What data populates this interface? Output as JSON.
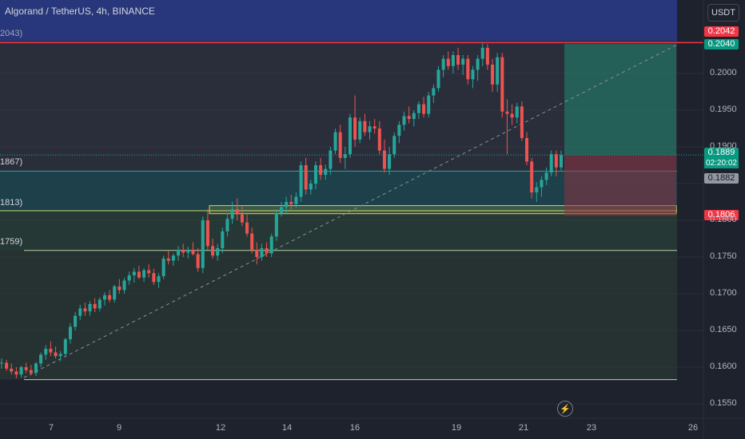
{
  "header": {
    "symbol_title": "Algorand / TetherUS, 4h, BINANCE",
    "currency_button": "USDT"
  },
  "level_labels": [
    "2043)",
    "1867)",
    "1813)",
    "1759)"
  ],
  "tags": {
    "red_top": "0.2042",
    "green_top": "0.2040",
    "last": "0.1889",
    "countdown": "02:20:02",
    "grey": "0.1882",
    "stop": "0.1806"
  },
  "icons": {
    "replay": "lightning-bolt-icon"
  },
  "chart_data": {
    "type": "candlestick",
    "title": "Algorand / TetherUS, 4h, BINANCE",
    "y_axis": {
      "ticks": [
        0.155,
        0.16,
        0.165,
        0.17,
        0.175,
        0.18,
        0.185,
        0.19,
        0.195,
        0.2
      ],
      "tick_labels": [
        "0.1550",
        "0.1600",
        "0.1650",
        "0.1700",
        "0.1750",
        "0.1800",
        "",
        "0.1900",
        "0.1950",
        "0.2000"
      ],
      "ylim": [
        0.1525,
        0.2095
      ]
    },
    "x_axis": {
      "tick_labels": [
        "7",
        "9",
        "12",
        "14",
        "16",
        "19",
        "21",
        "23",
        "26"
      ]
    },
    "colors": {
      "up": "#26a69a",
      "down": "#ef5350",
      "background": "#1e222d"
    },
    "horizontal_levels": {
      "red_line": 0.2042,
      "level_1": 0.1867,
      "level_2": 0.1813,
      "level_3": 0.1759,
      "base": 0.1583
    },
    "position": {
      "entry": 0.1889,
      "target": 0.204,
      "stop": 0.1806
    },
    "candles": [
      [
        0.1605,
        0.1612,
        0.1598,
        0.1606
      ],
      [
        0.1606,
        0.161,
        0.1595,
        0.1598
      ],
      [
        0.1598,
        0.1605,
        0.159,
        0.1594
      ],
      [
        0.1594,
        0.16,
        0.1585,
        0.159
      ],
      [
        0.159,
        0.1602,
        0.1586,
        0.16
      ],
      [
        0.16,
        0.1606,
        0.1592,
        0.1596
      ],
      [
        0.1596,
        0.1603,
        0.1589,
        0.1592
      ],
      [
        0.1592,
        0.1607,
        0.1588,
        0.1605
      ],
      [
        0.1605,
        0.162,
        0.16,
        0.1617
      ],
      [
        0.1617,
        0.163,
        0.161,
        0.1625
      ],
      [
        0.1625,
        0.1635,
        0.1615,
        0.162
      ],
      [
        0.162,
        0.1628,
        0.1612,
        0.1615
      ],
      [
        0.1615,
        0.1622,
        0.1608,
        0.1618
      ],
      [
        0.1618,
        0.164,
        0.1615,
        0.1638
      ],
      [
        0.1638,
        0.166,
        0.1632,
        0.1655
      ],
      [
        0.1655,
        0.1675,
        0.165,
        0.167
      ],
      [
        0.167,
        0.1685,
        0.1664,
        0.168
      ],
      [
        0.168,
        0.1688,
        0.167,
        0.1676
      ],
      [
        0.1676,
        0.169,
        0.167,
        0.1686
      ],
      [
        0.1686,
        0.1694,
        0.1675,
        0.168
      ],
      [
        0.168,
        0.1695,
        0.1676,
        0.1692
      ],
      [
        0.1692,
        0.1702,
        0.1684,
        0.1698
      ],
      [
        0.1698,
        0.1705,
        0.1688,
        0.1692
      ],
      [
        0.1692,
        0.1712,
        0.1688,
        0.171
      ],
      [
        0.171,
        0.172,
        0.17,
        0.1705
      ],
      [
        0.1705,
        0.1722,
        0.17,
        0.1718
      ],
      [
        0.1718,
        0.173,
        0.1712,
        0.1725
      ],
      [
        0.1725,
        0.1735,
        0.1715,
        0.173
      ],
      [
        0.173,
        0.1738,
        0.172,
        0.1722
      ],
      [
        0.1722,
        0.1735,
        0.1716,
        0.1732
      ],
      [
        0.1732,
        0.174,
        0.1722,
        0.1728
      ],
      [
        0.1728,
        0.1734,
        0.1712,
        0.1716
      ],
      [
        0.1716,
        0.1728,
        0.1708,
        0.1724
      ],
      [
        0.1724,
        0.1752,
        0.172,
        0.1748
      ],
      [
        0.1748,
        0.1758,
        0.174,
        0.1745
      ],
      [
        0.1745,
        0.1755,
        0.1738,
        0.1752
      ],
      [
        0.1752,
        0.1765,
        0.1745,
        0.176
      ],
      [
        0.176,
        0.1768,
        0.175,
        0.1756
      ],
      [
        0.1756,
        0.1764,
        0.1748,
        0.176
      ],
      [
        0.176,
        0.177,
        0.1752,
        0.1754
      ],
      [
        0.1754,
        0.1762,
        0.173,
        0.1735
      ],
      [
        0.1735,
        0.1805,
        0.1728,
        0.18
      ],
      [
        0.18,
        0.1815,
        0.176,
        0.1765
      ],
      [
        0.1765,
        0.1775,
        0.1748,
        0.1752
      ],
      [
        0.1752,
        0.1768,
        0.1745,
        0.1762
      ],
      [
        0.1762,
        0.179,
        0.1755,
        0.1785
      ],
      [
        0.1785,
        0.181,
        0.1778,
        0.1802
      ],
      [
        0.1802,
        0.1825,
        0.1795,
        0.1815
      ],
      [
        0.1815,
        0.183,
        0.18,
        0.1808
      ],
      [
        0.1808,
        0.182,
        0.1792,
        0.1797
      ],
      [
        0.1797,
        0.1808,
        0.1778,
        0.1782
      ],
      [
        0.1782,
        0.179,
        0.1755,
        0.176
      ],
      [
        0.176,
        0.177,
        0.174,
        0.175
      ],
      [
        0.175,
        0.1768,
        0.1745,
        0.1762
      ],
      [
        0.1762,
        0.177,
        0.175,
        0.1755
      ],
      [
        0.1755,
        0.1782,
        0.175,
        0.1778
      ],
      [
        0.1778,
        0.1815,
        0.1772,
        0.181
      ],
      [
        0.181,
        0.1825,
        0.1805,
        0.1818
      ],
      [
        0.1818,
        0.1832,
        0.1808,
        0.1825
      ],
      [
        0.1825,
        0.1835,
        0.1815,
        0.1822
      ],
      [
        0.1822,
        0.1838,
        0.1817,
        0.1832
      ],
      [
        0.1832,
        0.188,
        0.1825,
        0.1875
      ],
      [
        0.1875,
        0.1885,
        0.1835,
        0.1842
      ],
      [
        0.1842,
        0.1855,
        0.1835,
        0.185
      ],
      [
        0.185,
        0.188,
        0.1842,
        0.1875
      ],
      [
        0.1875,
        0.1885,
        0.1855,
        0.1862
      ],
      [
        0.1862,
        0.1876,
        0.1855,
        0.187
      ],
      [
        0.187,
        0.19,
        0.1862,
        0.1895
      ],
      [
        0.1895,
        0.1925,
        0.189,
        0.192
      ],
      [
        0.192,
        0.193,
        0.1878,
        0.1885
      ],
      [
        0.1885,
        0.19,
        0.187,
        0.189
      ],
      [
        0.189,
        0.1945,
        0.1885,
        0.194
      ],
      [
        0.194,
        0.197,
        0.19,
        0.191
      ],
      [
        0.191,
        0.194,
        0.1905,
        0.1935
      ],
      [
        0.1935,
        0.1945,
        0.1915,
        0.192
      ],
      [
        0.192,
        0.1935,
        0.191,
        0.1928
      ],
      [
        0.1928,
        0.1938,
        0.1918,
        0.1925
      ],
      [
        0.1925,
        0.1935,
        0.189,
        0.1895
      ],
      [
        0.1895,
        0.191,
        0.1865,
        0.187
      ],
      [
        0.187,
        0.19,
        0.1862,
        0.189
      ],
      [
        0.189,
        0.192,
        0.1885,
        0.1915
      ],
      [
        0.1915,
        0.1935,
        0.1905,
        0.193
      ],
      [
        0.193,
        0.1948,
        0.1922,
        0.1942
      ],
      [
        0.1942,
        0.1955,
        0.1932,
        0.1938
      ],
      [
        0.1938,
        0.195,
        0.1928,
        0.1946
      ],
      [
        0.1946,
        0.1962,
        0.1938,
        0.1958
      ],
      [
        0.1958,
        0.1968,
        0.194,
        0.1945
      ],
      [
        0.1945,
        0.1975,
        0.194,
        0.197
      ],
      [
        0.197,
        0.1985,
        0.196,
        0.198
      ],
      [
        0.198,
        0.201,
        0.1975,
        0.2005
      ],
      [
        0.2005,
        0.2025,
        0.1995,
        0.202
      ],
      [
        0.202,
        0.203,
        0.2005,
        0.201
      ],
      [
        0.201,
        0.203,
        0.2,
        0.2025
      ],
      [
        0.2025,
        0.2035,
        0.2005,
        0.2012
      ],
      [
        0.2012,
        0.2025,
        0.1998,
        0.202
      ],
      [
        0.202,
        0.2025,
        0.1985,
        0.1992
      ],
      [
        0.1992,
        0.201,
        0.198,
        0.2005
      ],
      [
        0.2005,
        0.2025,
        0.199,
        0.202
      ],
      [
        0.202,
        0.2042,
        0.201,
        0.2035
      ],
      [
        0.2035,
        0.204,
        0.2005,
        0.2012
      ],
      [
        0.2012,
        0.202,
        0.1975,
        0.1985
      ],
      [
        0.1985,
        0.2028,
        0.1975,
        0.2022
      ],
      [
        0.2022,
        0.2028,
        0.194,
        0.1948
      ],
      [
        0.1948,
        0.1965,
        0.189,
        0.1945
      ],
      [
        0.1945,
        0.1958,
        0.193,
        0.194
      ],
      [
        0.194,
        0.196,
        0.1932,
        0.1955
      ],
      [
        0.1955,
        0.1962,
        0.1908,
        0.1912
      ],
      [
        0.1912,
        0.192,
        0.1875,
        0.188
      ],
      [
        0.188,
        0.1885,
        0.183,
        0.1838
      ],
      [
        0.1838,
        0.1852,
        0.1825,
        0.1845
      ],
      [
        0.1845,
        0.186,
        0.1832,
        0.1855
      ],
      [
        0.1855,
        0.1872,
        0.1848,
        0.1865
      ],
      [
        0.1865,
        0.1895,
        0.186,
        0.189
      ],
      [
        0.189,
        0.1895,
        0.186,
        0.1872
      ],
      [
        0.1872,
        0.1895,
        0.1868,
        0.1889
      ]
    ]
  }
}
